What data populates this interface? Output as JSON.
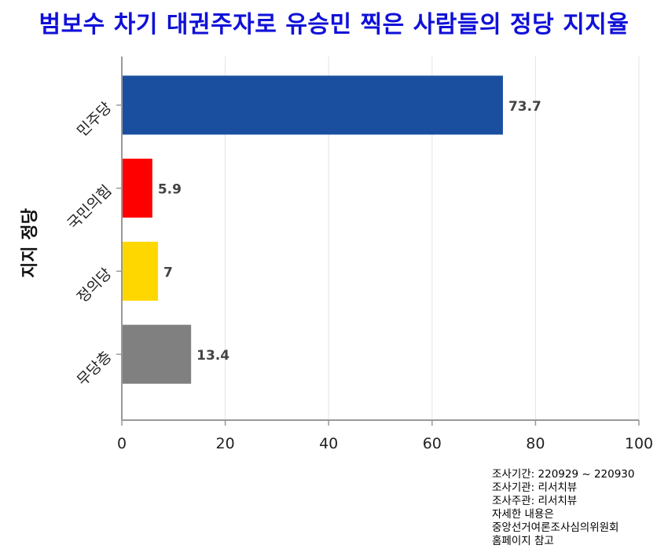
{
  "chart_data": {
    "type": "bar",
    "orientation": "horizontal",
    "title": "범보수 차기 대권주자로 유승민 찍은 사람들의 정당 지지율",
    "ylabel": "지지 정당",
    "xlabel": "",
    "categories": [
      "민주당",
      "국민의힘",
      "정의당",
      "무당층"
    ],
    "values": [
      73.7,
      5.9,
      7,
      13.4
    ],
    "value_labels": [
      "73.7",
      "5.9",
      "7",
      "13.4"
    ],
    "colors": [
      "#1a4fa0",
      "#ff0000",
      "#ffd700",
      "#808080"
    ],
    "xlim": [
      0,
      100
    ],
    "xticks": [
      "0",
      "20",
      "40",
      "60",
      "80",
      "100"
    ],
    "grid": true
  },
  "notes": [
    "조사기간: 220929 ~ 220930",
    "조사기관: 리서치뷰",
    "조사주관: 리서치뷰",
    "자세한 내용은",
    "중앙선거여론조사심의위원회",
    "홈페이지 참고"
  ]
}
